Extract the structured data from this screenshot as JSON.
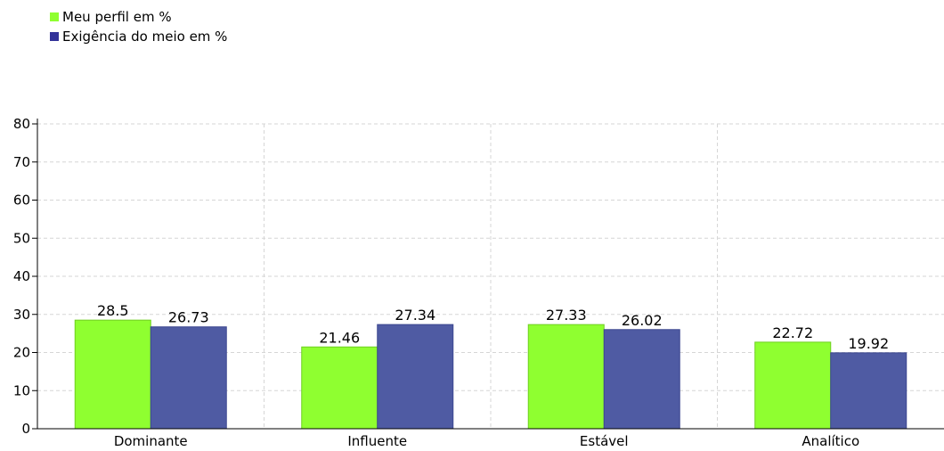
{
  "legend": {
    "items": [
      {
        "label": "Meu perfil em %",
        "color": "#8fff30"
      },
      {
        "label": "Exigência do meio em %",
        "color": "#333399"
      }
    ]
  },
  "chart_data": {
    "type": "bar",
    "categories": [
      "Dominante",
      "Influente",
      "Estável",
      "Analítico"
    ],
    "series": [
      {
        "name": "Meu perfil em %",
        "values": [
          28.5,
          21.46,
          27.33,
          22.72
        ],
        "color": "#8fff30"
      },
      {
        "name": "Exigência do meio em %",
        "values": [
          26.73,
          27.34,
          26.02,
          19.92
        ],
        "color": "#4f5ba3"
      }
    ],
    "ylim": [
      0,
      80
    ],
    "yticks": [
      0,
      10,
      20,
      30,
      40,
      50,
      60,
      70,
      80
    ],
    "grid": true,
    "legend_position": "top-left"
  }
}
